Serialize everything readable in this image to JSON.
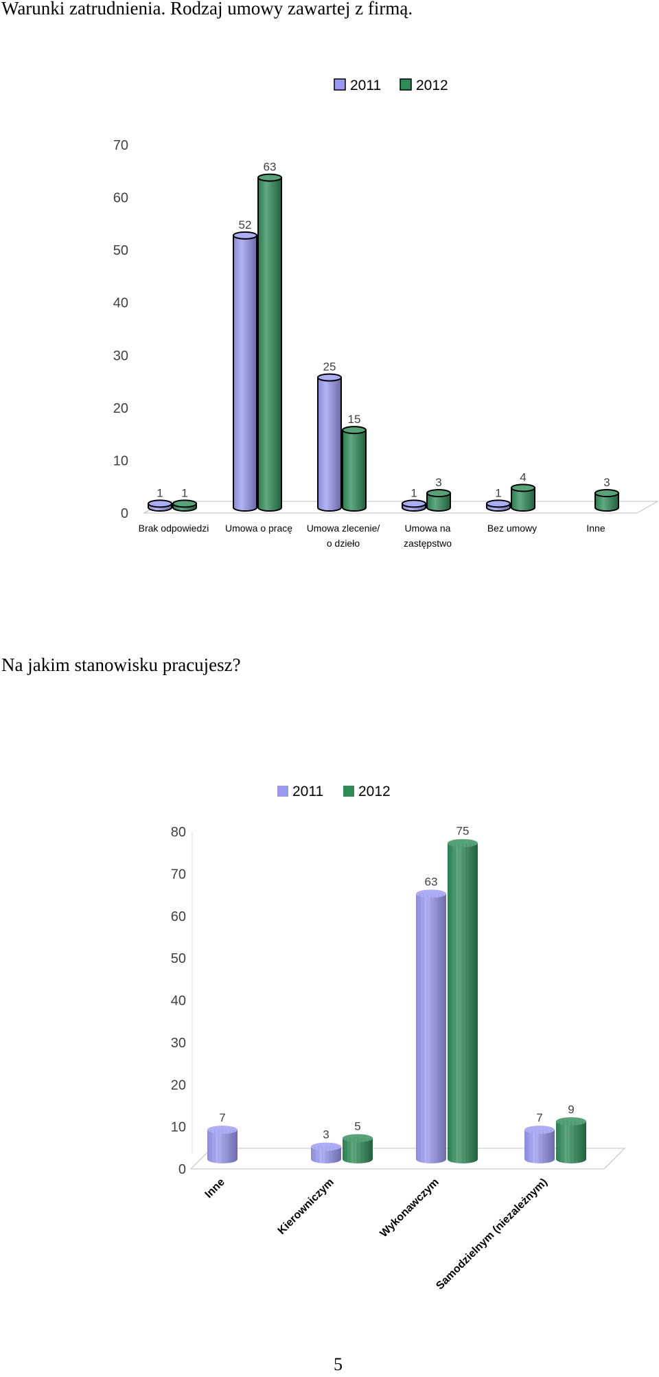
{
  "headings": {
    "first": "Warunki zatrudnienia. Rodzaj umowy zawartej z firmą.",
    "second": "Na jakim stanowisku pracujesz?"
  },
  "page_number": "5",
  "colors": {
    "2011": "#9999f2",
    "2012": "#2e8b57"
  },
  "chart_data": [
    {
      "type": "bar",
      "categories": [
        "Brak odpowiedzi",
        "Umowa o pracę",
        "Umowa zlecenie/ o dzieło",
        "Umowa na zastępstwo",
        "Bez umowy",
        "Inne"
      ],
      "category_lines": [
        [
          "Brak odpowiedzi"
        ],
        [
          "Umowa o pracę"
        ],
        [
          "Umowa zlecenie/",
          "o dzieło"
        ],
        [
          "Umowa na",
          "zastępstwo"
        ],
        [
          "Bez umowy"
        ],
        [
          "Inne"
        ]
      ],
      "series": [
        {
          "name": "2011",
          "values": [
            1,
            52,
            25,
            1,
            1,
            null
          ]
        },
        {
          "name": "2012",
          "values": [
            1,
            63,
            15,
            3,
            4,
            3
          ]
        }
      ],
      "ylim": [
        0,
        70
      ],
      "yticks": [
        0,
        10,
        20,
        30,
        40,
        50,
        60,
        70
      ],
      "legend": "top",
      "style": "3d-cylinder"
    },
    {
      "type": "bar",
      "categories": [
        "Inne",
        "Kierowniczym",
        "Wykonawczym",
        "Samodzielnym (niezależnym)"
      ],
      "series": [
        {
          "name": "2011",
          "values": [
            7,
            3,
            63,
            7
          ]
        },
        {
          "name": "2012",
          "values": [
            null,
            5,
            75,
            9
          ]
        }
      ],
      "ylim": [
        0,
        80
      ],
      "yticks": [
        0,
        10,
        20,
        30,
        40,
        50,
        60,
        70,
        80
      ],
      "legend": "top",
      "style": "3d-cylinder"
    }
  ]
}
